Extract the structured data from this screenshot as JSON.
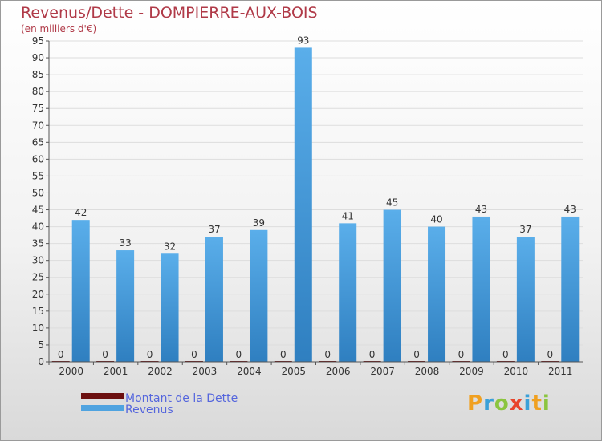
{
  "chart_data": {
    "type": "bar",
    "title": "Revenus/Dette - DOMPIERRE-AUX-BOIS",
    "subtitle": "(en milliers d'€)",
    "categories": [
      "2000",
      "2001",
      "2002",
      "2003",
      "2004",
      "2005",
      "2006",
      "2007",
      "2008",
      "2009",
      "2010",
      "2011"
    ],
    "series": [
      {
        "name": "Montant de la Dette",
        "color": "#6b0f0f",
        "values": [
          0,
          0,
          0,
          0,
          0,
          0,
          0,
          0,
          0,
          0,
          0,
          0
        ]
      },
      {
        "name": "Revenus",
        "color": "#4fa3e0",
        "values": [
          42,
          33,
          32,
          37,
          39,
          93,
          41,
          45,
          40,
          43,
          37,
          43
        ]
      }
    ],
    "yticks": [
      0,
      5,
      10,
      15,
      20,
      25,
      30,
      35,
      40,
      45,
      50,
      55,
      60,
      65,
      70,
      75,
      80,
      85,
      90,
      95
    ],
    "ylim": [
      0,
      95
    ],
    "legend_position": "bottom-left"
  },
  "brand": {
    "logo_letters": [
      "P",
      "r",
      "o",
      "x",
      "i",
      "t",
      "i"
    ],
    "logo_colors": [
      "#f0a020",
      "#3aa0d8",
      "#8bc53f",
      "#e8452c",
      "#3aa0d8",
      "#f0a020",
      "#8bc53f"
    ]
  }
}
